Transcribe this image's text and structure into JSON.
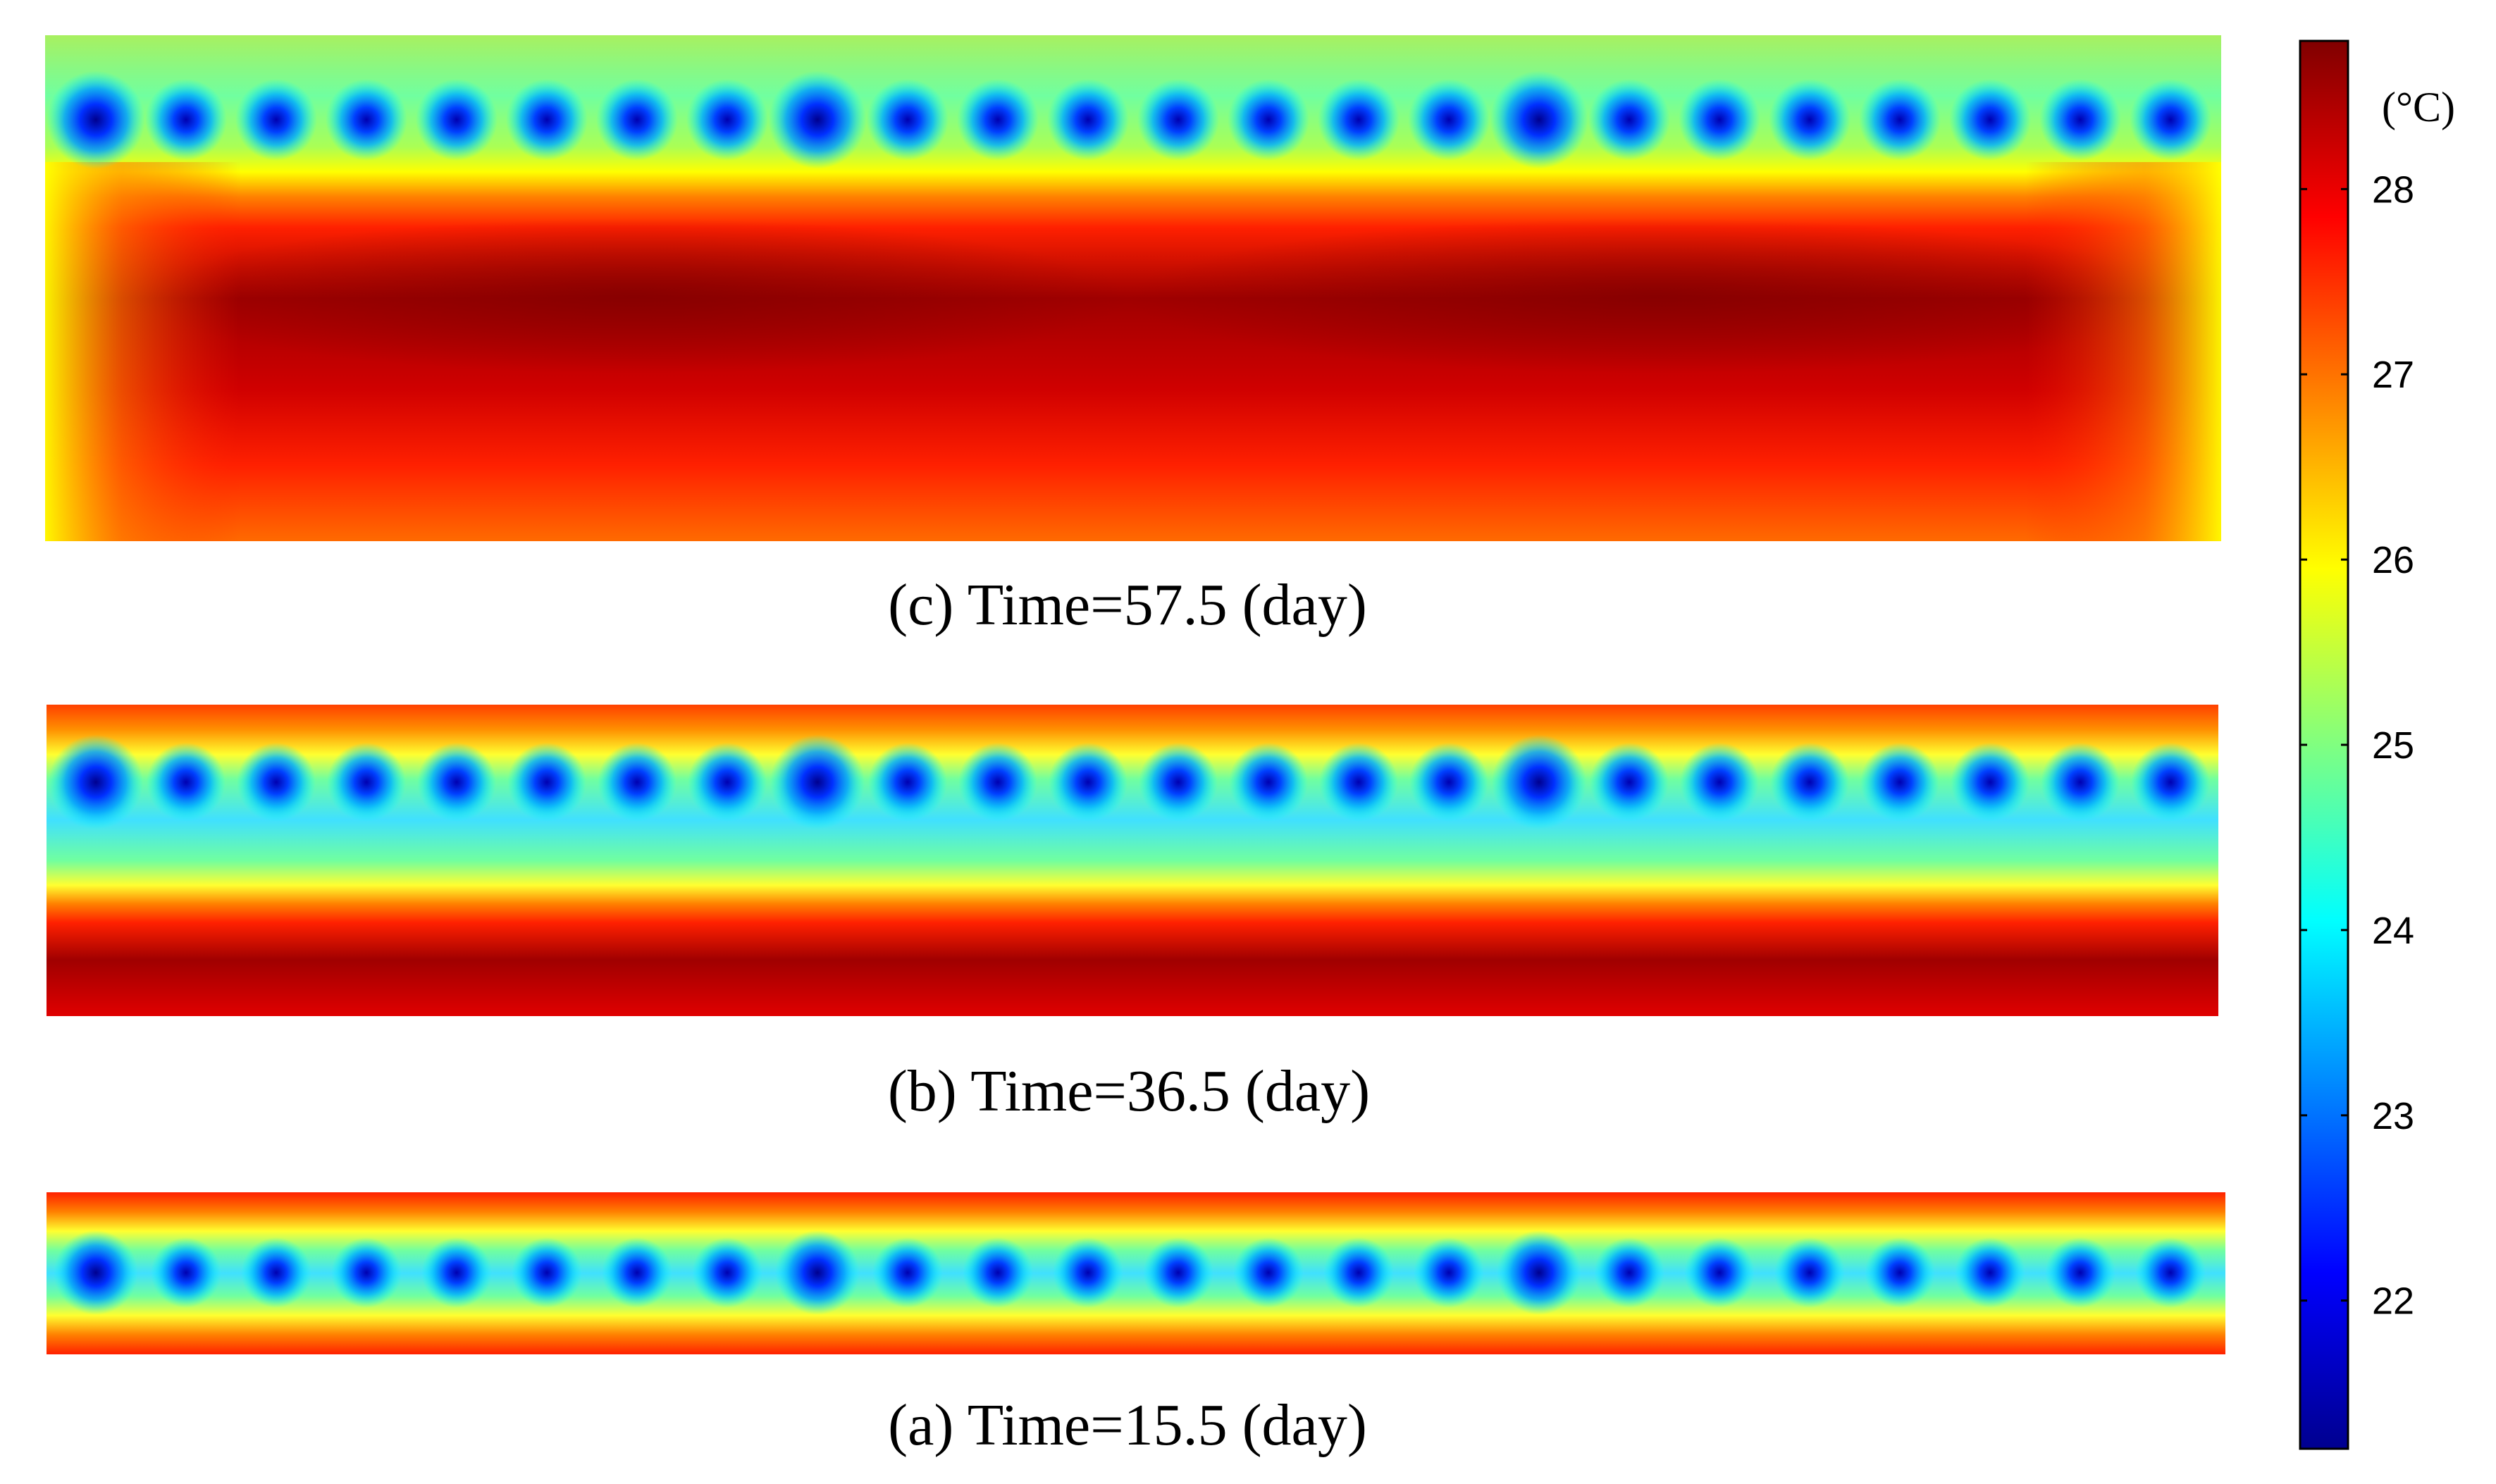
{
  "chart_data": {
    "type": "heatmap",
    "colormap": "jet",
    "colorbar": {
      "unit": "(°C)",
      "range": [
        21.2,
        28.8
      ],
      "ticks": [
        22,
        23,
        24,
        25,
        26,
        27,
        28
      ],
      "colors": [
        "#00008f",
        "#0000ff",
        "#0080ff",
        "#00ffff",
        "#80ff80",
        "#ffff00",
        "#ff8000",
        "#ff0000",
        "#800000"
      ]
    },
    "panels": [
      {
        "caption": "(c) Time=57.5 (day)",
        "cold_source_count": 24,
        "cold_source_min_temp": 22,
        "boundary_temp": 25.3,
        "core_temp": 28.7
      },
      {
        "caption": "(b) Time=36.5 (day)",
        "cold_source_count": 24,
        "cold_source_min_temp": 22.5,
        "boundary_temp": 27.6,
        "core_temp": 28.5
      },
      {
        "caption": "(a) Time=15.5 (day)",
        "cold_source_count": 24,
        "cold_source_min_temp": 22.5,
        "boundary_temp": 27.8,
        "core_temp": 28.2
      }
    ]
  }
}
